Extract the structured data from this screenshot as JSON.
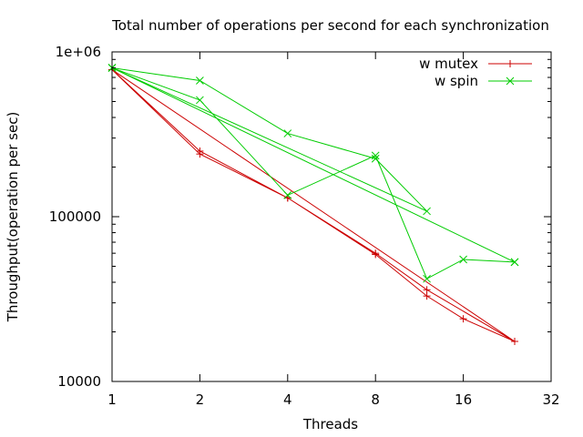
{
  "chart_data": {
    "type": "line",
    "title": "Total number of operations per second for each synchronization",
    "xlabel": "Threads",
    "ylabel": "Throughput(operation per sec)",
    "x_scale": "log2",
    "y_scale": "log10",
    "xlim": [
      1,
      32
    ],
    "ylim": [
      10000,
      1000000
    ],
    "x_ticks": [
      {
        "value": 1,
        "label": "1"
      },
      {
        "value": 2,
        "label": "2"
      },
      {
        "value": 4,
        "label": "4"
      },
      {
        "value": 8,
        "label": "8"
      },
      {
        "value": 16,
        "label": "16"
      },
      {
        "value": 32,
        "label": "32"
      }
    ],
    "y_ticks": [
      {
        "value": 10000,
        "label": "10000"
      },
      {
        "value": 100000,
        "label": "100000"
      },
      {
        "value": 1000000,
        "label": "1e+06"
      }
    ],
    "grid": false,
    "legend_position": "top-right",
    "series": [
      {
        "name": "w mutex",
        "color": "#cc0000",
        "marker": "plus",
        "x": [
          1,
          2,
          4,
          8,
          12,
          24,
          1,
          2,
          4,
          8,
          12,
          16,
          24
        ],
        "y": [
          780000,
          250000,
          130000,
          60000,
          36000,
          17500,
          780000,
          240000,
          130000,
          59000,
          33000,
          24000,
          17500
        ]
      },
      {
        "name": "w spin",
        "color": "#00cc00",
        "marker": "cross",
        "x": [
          1,
          2,
          4,
          8,
          12,
          1,
          2,
          4,
          8,
          12,
          16,
          24,
          1,
          24
        ],
        "y": [
          800000,
          670000,
          320000,
          225000,
          108000,
          800000,
          510000,
          135000,
          235000,
          42000,
          55000,
          53000,
          800000,
          53000
        ]
      }
    ]
  }
}
